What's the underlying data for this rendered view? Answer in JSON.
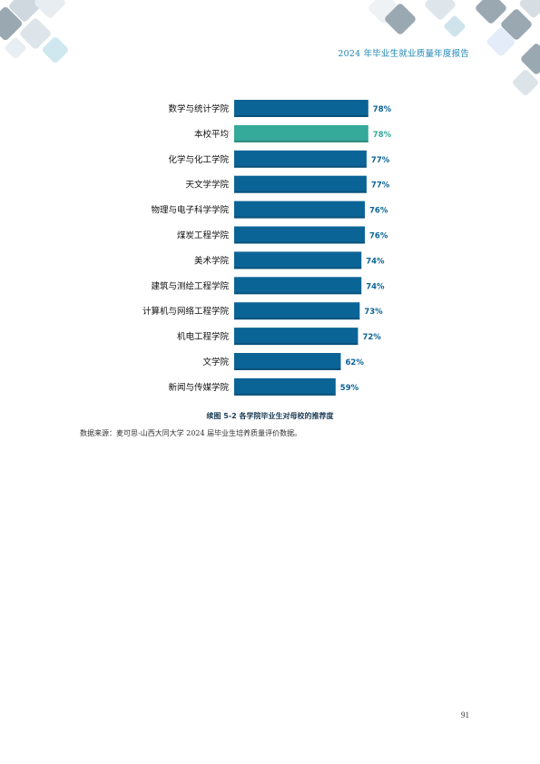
{
  "header": {
    "title": "2024 年毕业生就业质量年度报告"
  },
  "colors": {
    "bar": "#0b6496",
    "highlight": "#35a99a",
    "label": "#0b6496",
    "header": "#1f86b4"
  },
  "chart_data": {
    "type": "bar",
    "orientation": "horizontal",
    "title": "续图 5-2 各学院毕业生对母校的推荐度",
    "categories": [
      "数学与统计学院",
      "本校平均",
      "化学与化工学院",
      "天文学学院",
      "物理与电子科学学院",
      "煤炭工程学院",
      "美术学院",
      "建筑与测绘工程学院",
      "计算机与网络工程学院",
      "机电工程学院",
      "文学院",
      "新闻与传媒学院"
    ],
    "values": [
      78,
      78,
      77,
      77,
      76,
      76,
      74,
      74,
      73,
      72,
      62,
      59
    ],
    "value_labels": [
      "78%",
      "78%",
      "77%",
      "77%",
      "76%",
      "76%",
      "74%",
      "74%",
      "73%",
      "72%",
      "62%",
      "59%"
    ],
    "highlight_category": "本校平均",
    "xlim": [
      0,
      100
    ],
    "grid": false,
    "legend": "none"
  },
  "source": "数据来源：麦可思-山西大同大学 2024 届毕业生培养质量评价数据。",
  "page_number": "91"
}
